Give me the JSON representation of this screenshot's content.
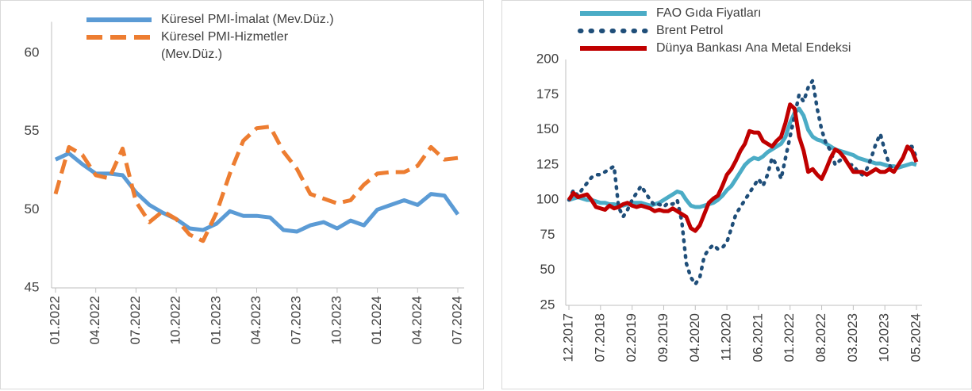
{
  "chart_data": [
    {
      "type": "line",
      "categories": [
        "01.2022",
        null,
        null,
        "04.2022",
        null,
        null,
        "07.2022",
        null,
        null,
        "10.2022",
        null,
        null,
        "01.2023",
        null,
        null,
        "04.2023",
        null,
        null,
        "07.2023",
        null,
        null,
        "10.2023",
        null,
        null,
        "01.2024",
        null,
        null,
        "04.2024",
        null,
        null,
        "07.2024"
      ],
      "ylim": [
        45,
        62
      ],
      "yticks": [
        45,
        50,
        55,
        60
      ],
      "grid": false,
      "series": [
        {
          "name": "Küresel PMI-İmalat (Mev.Düz.)",
          "color": "#5b9bd5",
          "style": "solid",
          "values": [
            53.2,
            53.6,
            52.9,
            52.3,
            52.3,
            52.2,
            51.1,
            50.3,
            49.8,
            49.4,
            48.8,
            48.7,
            49.1,
            49.9,
            49.6,
            49.6,
            49.5,
            48.7,
            48.6,
            49.0,
            49.2,
            48.8,
            49.3,
            49.0,
            50.0,
            50.3,
            50.6,
            50.3,
            51.0,
            50.9,
            49.7
          ]
        },
        {
          "name": "Küresel PMI-Hizmetler (Mev.Düz.)",
          "color": "#ed7d31",
          "style": "dashed",
          "values": [
            51.0,
            54.0,
            53.5,
            52.2,
            52.0,
            53.9,
            50.5,
            49.2,
            49.9,
            49.4,
            48.4,
            48.0,
            49.8,
            52.3,
            54.4,
            55.2,
            55.3,
            53.7,
            52.6,
            51.0,
            50.7,
            50.4,
            50.6,
            51.6,
            52.3,
            52.4,
            52.4,
            52.8,
            54.0,
            53.2,
            53.3
          ]
        }
      ]
    },
    {
      "type": "line",
      "categories": [
        "12.2017",
        null,
        null,
        null,
        null,
        null,
        null,
        "07.2018",
        null,
        null,
        null,
        null,
        null,
        null,
        "02.2019",
        null,
        null,
        null,
        null,
        null,
        null,
        "09.2019",
        null,
        null,
        null,
        null,
        null,
        null,
        "04.2020",
        null,
        null,
        null,
        null,
        null,
        null,
        "11.2020",
        null,
        null,
        null,
        null,
        null,
        null,
        "06.2021",
        null,
        null,
        null,
        null,
        null,
        null,
        "01.2022",
        null,
        null,
        null,
        null,
        null,
        null,
        "08.2022",
        null,
        null,
        null,
        null,
        null,
        null,
        "03.2023",
        null,
        null,
        null,
        null,
        null,
        null,
        "10.2023",
        null,
        null,
        null,
        null,
        null,
        null,
        "05.2024"
      ],
      "ylim": [
        25,
        200
      ],
      "yticks": [
        25,
        50,
        75,
        100,
        125,
        150,
        175,
        200
      ],
      "grid": false,
      "series": [
        {
          "name": "FAO Gıda Fiyatları",
          "color": "#4bacc6",
          "style": "solid",
          "values": [
            100,
            101,
            102,
            101,
            100,
            100,
            99,
            98,
            98,
            97,
            97,
            96,
            96,
            97,
            98,
            98,
            98,
            97,
            96,
            97,
            98,
            100,
            102,
            104,
            106,
            105,
            100,
            96,
            95,
            95,
            96,
            97,
            98,
            100,
            103,
            107,
            110,
            115,
            120,
            125,
            128,
            130,
            129,
            131,
            134,
            136,
            138,
            140,
            145,
            155,
            162,
            165,
            160,
            150,
            145,
            143,
            142,
            140,
            138,
            136,
            135,
            134,
            133,
            132,
            130,
            129,
            128,
            127,
            126,
            126,
            125,
            124,
            124,
            123,
            124,
            125,
            126,
            125
          ]
        },
        {
          "name": "Brent Petrol",
          "color": "#1f4e79",
          "style": "dotted",
          "values": [
            100,
            107,
            103,
            108,
            112,
            116,
            118,
            118,
            120,
            122,
            124,
            95,
            88,
            93,
            100,
            105,
            110,
            105,
            100,
            96,
            97,
            95,
            98,
            97,
            100,
            85,
            55,
            45,
            40,
            45,
            60,
            65,
            68,
            65,
            66,
            70,
            80,
            90,
            95,
            100,
            105,
            110,
            115,
            110,
            118,
            130,
            125,
            115,
            130,
            145,
            160,
            175,
            170,
            180,
            185,
            165,
            150,
            140,
            135,
            125,
            128,
            130,
            125,
            125,
            120,
            118,
            122,
            130,
            140,
            147,
            135,
            125,
            120,
            125,
            130,
            138,
            138,
            130
          ]
        },
        {
          "name": "Dünya Bankası Ana Metal Endeksi",
          "color": "#c00000",
          "style": "solid",
          "values": [
            100,
            105,
            102,
            103,
            104,
            100,
            95,
            94,
            93,
            96,
            94,
            95,
            97,
            98,
            96,
            95,
            96,
            95,
            94,
            92,
            93,
            92,
            92,
            94,
            92,
            90,
            88,
            80,
            78,
            82,
            90,
            98,
            101,
            103,
            110,
            118,
            122,
            128,
            135,
            140,
            149,
            148,
            148,
            142,
            140,
            138,
            142,
            145,
            155,
            168,
            165,
            145,
            135,
            120,
            122,
            118,
            115,
            122,
            130,
            136,
            134,
            130,
            125,
            120,
            120,
            120,
            118,
            120,
            122,
            120,
            120,
            122,
            120,
            125,
            130,
            138,
            135,
            127
          ]
        }
      ]
    }
  ]
}
